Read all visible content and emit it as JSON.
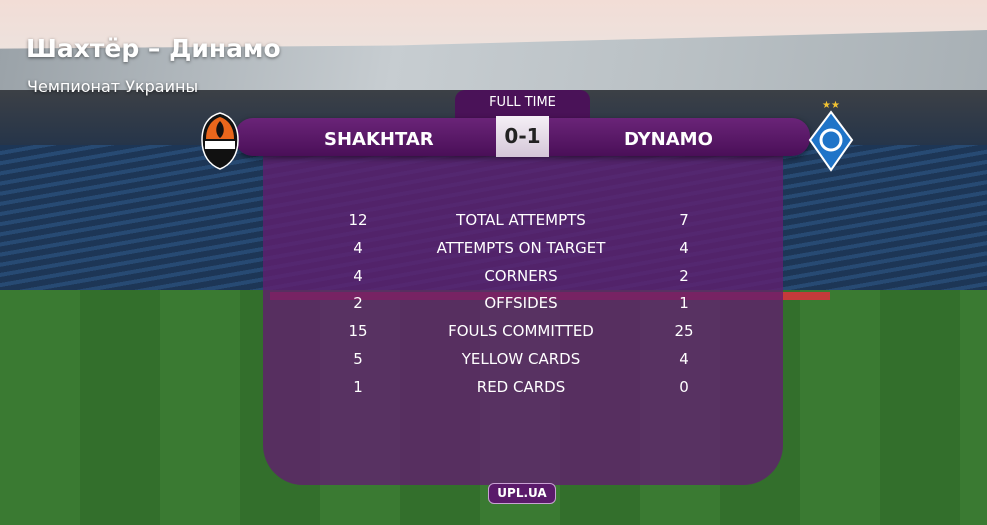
{
  "overlay": {
    "title": "Шахтёр – Динамо",
    "subtitle": "Чемпионат Украины"
  },
  "scoreboard": {
    "status": "FULL TIME",
    "home_team": "SHAKHTAR",
    "away_team": "DYNAMO",
    "score": "0-1",
    "home_logo": "shakhtar-crest-icon",
    "away_logo": "dynamo-crest-icon"
  },
  "stats": [
    {
      "home": "12",
      "label": "TOTAL ATTEMPTS",
      "away": "7"
    },
    {
      "home": "4",
      "label": "ATTEMPTS ON TARGET",
      "away": "4"
    },
    {
      "home": "4",
      "label": "CORNERS",
      "away": "2"
    },
    {
      "home": "2",
      "label": "OFFSIDES",
      "away": "1"
    },
    {
      "home": "15",
      "label": "FOULS COMMITTED",
      "away": "25"
    },
    {
      "home": "5",
      "label": "YELLOW CARDS",
      "away": "4"
    },
    {
      "home": "1",
      "label": "RED CARDS",
      "away": "0"
    }
  ],
  "footer": {
    "brand": "UPL.UA"
  },
  "colors": {
    "panel": "#621e70",
    "header": "#4a0f58",
    "shakhtar_orange": "#e8661c",
    "dynamo_blue": "#1f74c8"
  }
}
